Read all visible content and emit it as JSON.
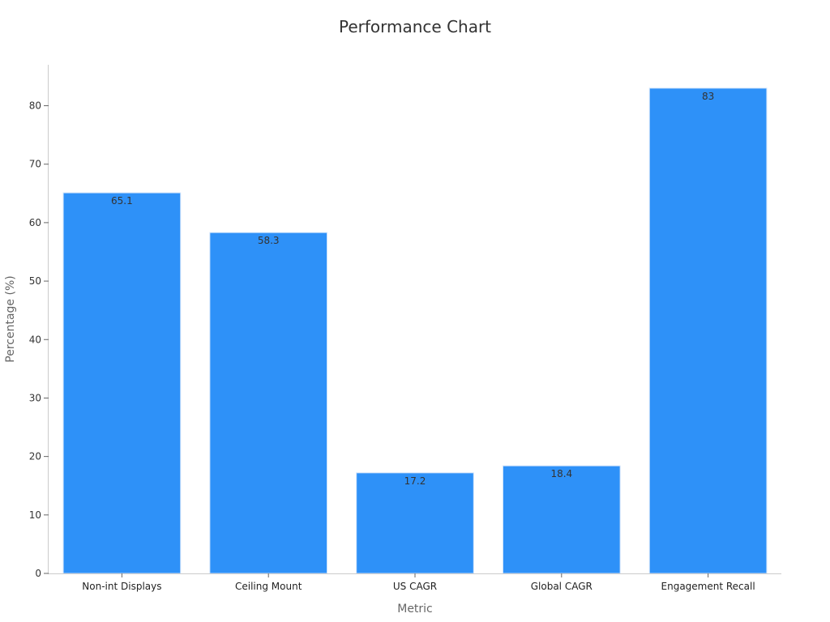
{
  "chart_data": {
    "type": "bar",
    "title": "Performance Chart",
    "xlabel": "Metric",
    "ylabel": "Percentage (%)",
    "categories": [
      "Non-int Displays",
      "Ceiling Mount",
      "US CAGR",
      "Global CAGR",
      "Engagement Recall"
    ],
    "values": [
      65.1,
      58.3,
      17.2,
      18.4,
      83
    ],
    "data_labels": [
      "65.1",
      "58.3",
      "17.2",
      "18.4",
      "83"
    ],
    "ylim": [
      0,
      87
    ],
    "yticks": [
      0,
      10,
      20,
      30,
      40,
      50,
      60,
      70,
      80
    ],
    "grid": false,
    "legend": "none",
    "colors": {
      "bar": "#2e91f8",
      "bar_edge": "#cfe3fb",
      "axis": "#cccccc"
    }
  }
}
